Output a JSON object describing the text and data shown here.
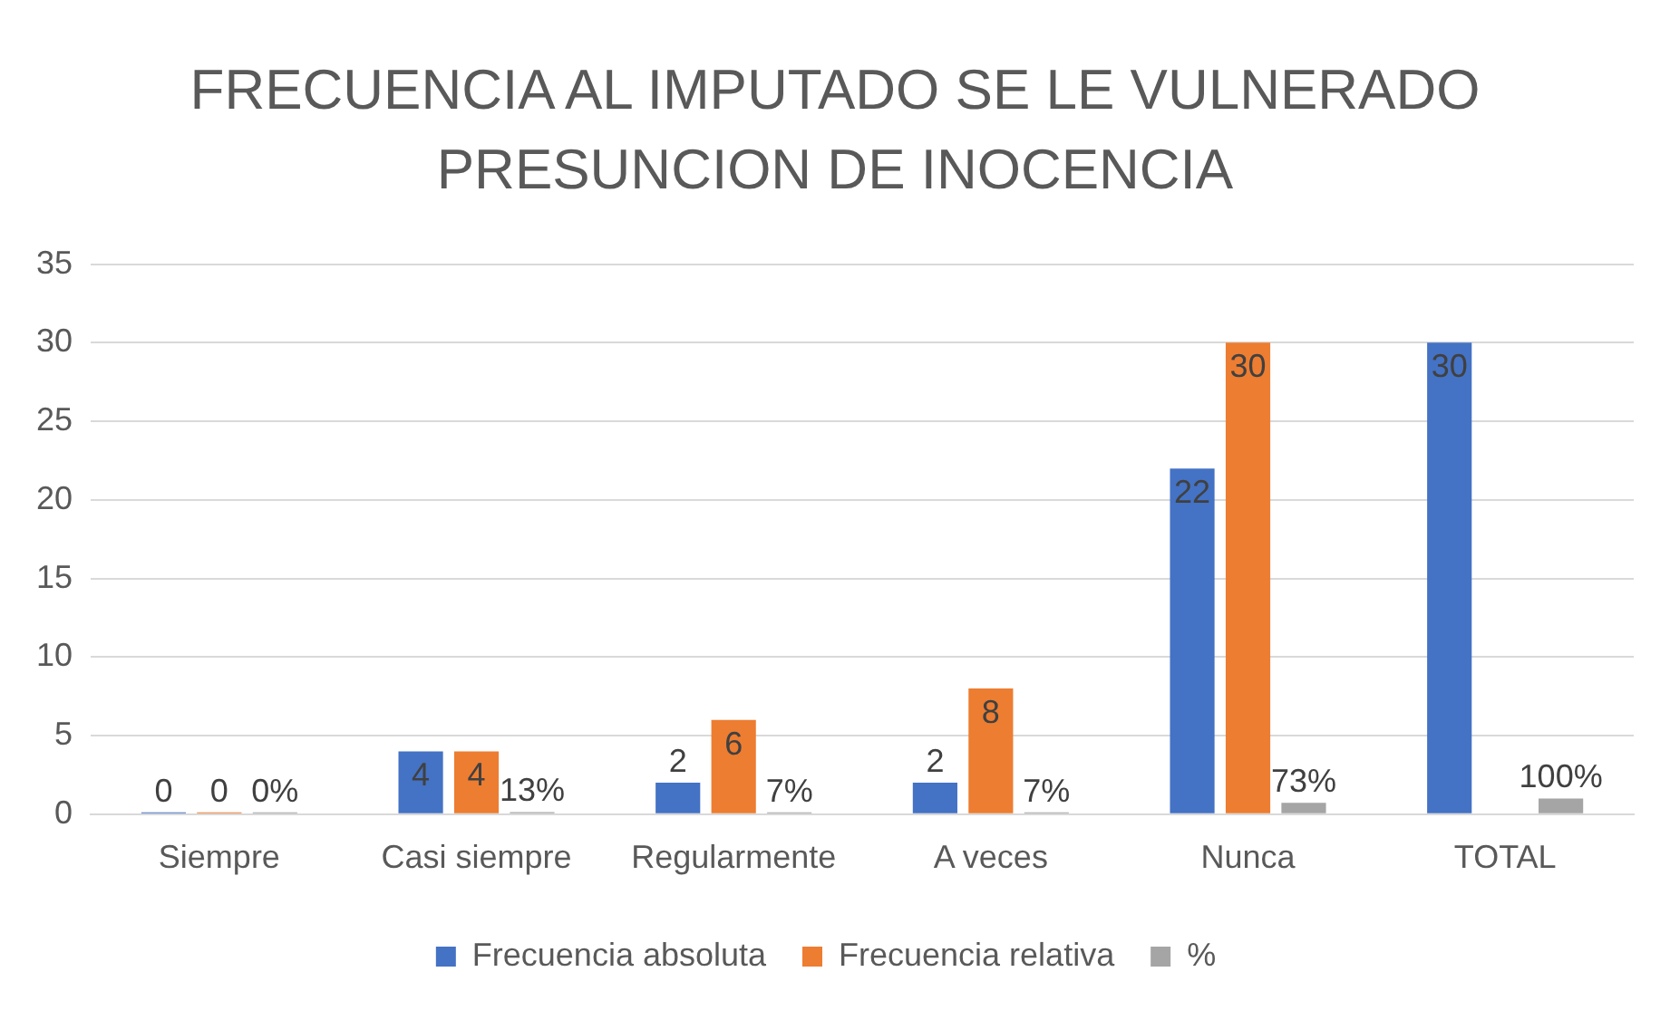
{
  "chart_data": {
    "type": "bar",
    "title": "FRECUENCIA AL IMPUTADO SE LE VULNERADO PRESUNCION DE INOCENCIA",
    "categories": [
      "Siempre",
      "Casi siempre",
      "Regularmente",
      "A veces",
      "Nunca",
      "TOTAL"
    ],
    "series": [
      {
        "name": "Frecuencia absoluta",
        "color": "#4472c4",
        "values": [
          0,
          4,
          2,
          2,
          22,
          30
        ],
        "value_labels": [
          "0",
          "4",
          "2",
          "2",
          "22",
          "30"
        ]
      },
      {
        "name": "Frecuencia relativa",
        "color": "#ed7d31",
        "values": [
          0,
          4,
          6,
          8,
          30,
          null
        ],
        "value_labels": [
          "0",
          "4",
          "6",
          "8",
          "30",
          null
        ]
      },
      {
        "name": "%",
        "color": "#a5a5a5",
        "values": [
          0,
          0.13,
          0.07,
          0.07,
          0.73,
          1
        ],
        "value_labels": [
          "0%",
          "13%",
          "7%",
          "7%",
          "73%",
          "100%"
        ]
      }
    ],
    "ylim": [
      0,
      35
    ],
    "yticks": [
      0,
      5,
      10,
      15,
      20,
      25,
      30,
      35
    ],
    "grid": "y",
    "legend": "bottom"
  }
}
